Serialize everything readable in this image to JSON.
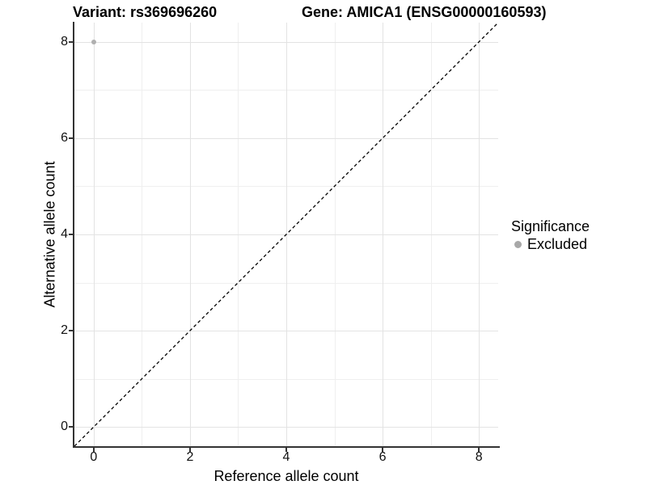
{
  "chart_data": {
    "type": "scatter",
    "title_left": "Variant: rs369696260",
    "title_right": "Gene: AMICA1 (ENSG00000160593)",
    "xlabel": "Reference allele count",
    "ylabel": "Alternative allele count",
    "xlim": [
      -0.4,
      8.4
    ],
    "ylim": [
      -0.4,
      8.4
    ],
    "x_ticks": [
      0,
      2,
      4,
      6,
      8
    ],
    "y_ticks": [
      0,
      2,
      4,
      6,
      8
    ],
    "minor_gridlines_x": [
      1,
      3,
      5,
      7
    ],
    "minor_gridlines_y": [
      1,
      3,
      5,
      7
    ],
    "grid": true,
    "points": [
      {
        "x": 0,
        "y": 8,
        "series": "Excluded",
        "color": "#b0b0b0"
      }
    ],
    "reference_line": {
      "type": "identity",
      "slope": 1,
      "intercept": 0,
      "style": "dashed",
      "color": "#000000"
    },
    "legend_position": "right",
    "legend": {
      "title": "Significance",
      "items": [
        {
          "label": "Excluded",
          "color": "#a8a8a8"
        }
      ]
    },
    "colors": {
      "grid_major": "#e3e3e3",
      "grid_minor": "#efefef",
      "axis": "#333333"
    }
  }
}
